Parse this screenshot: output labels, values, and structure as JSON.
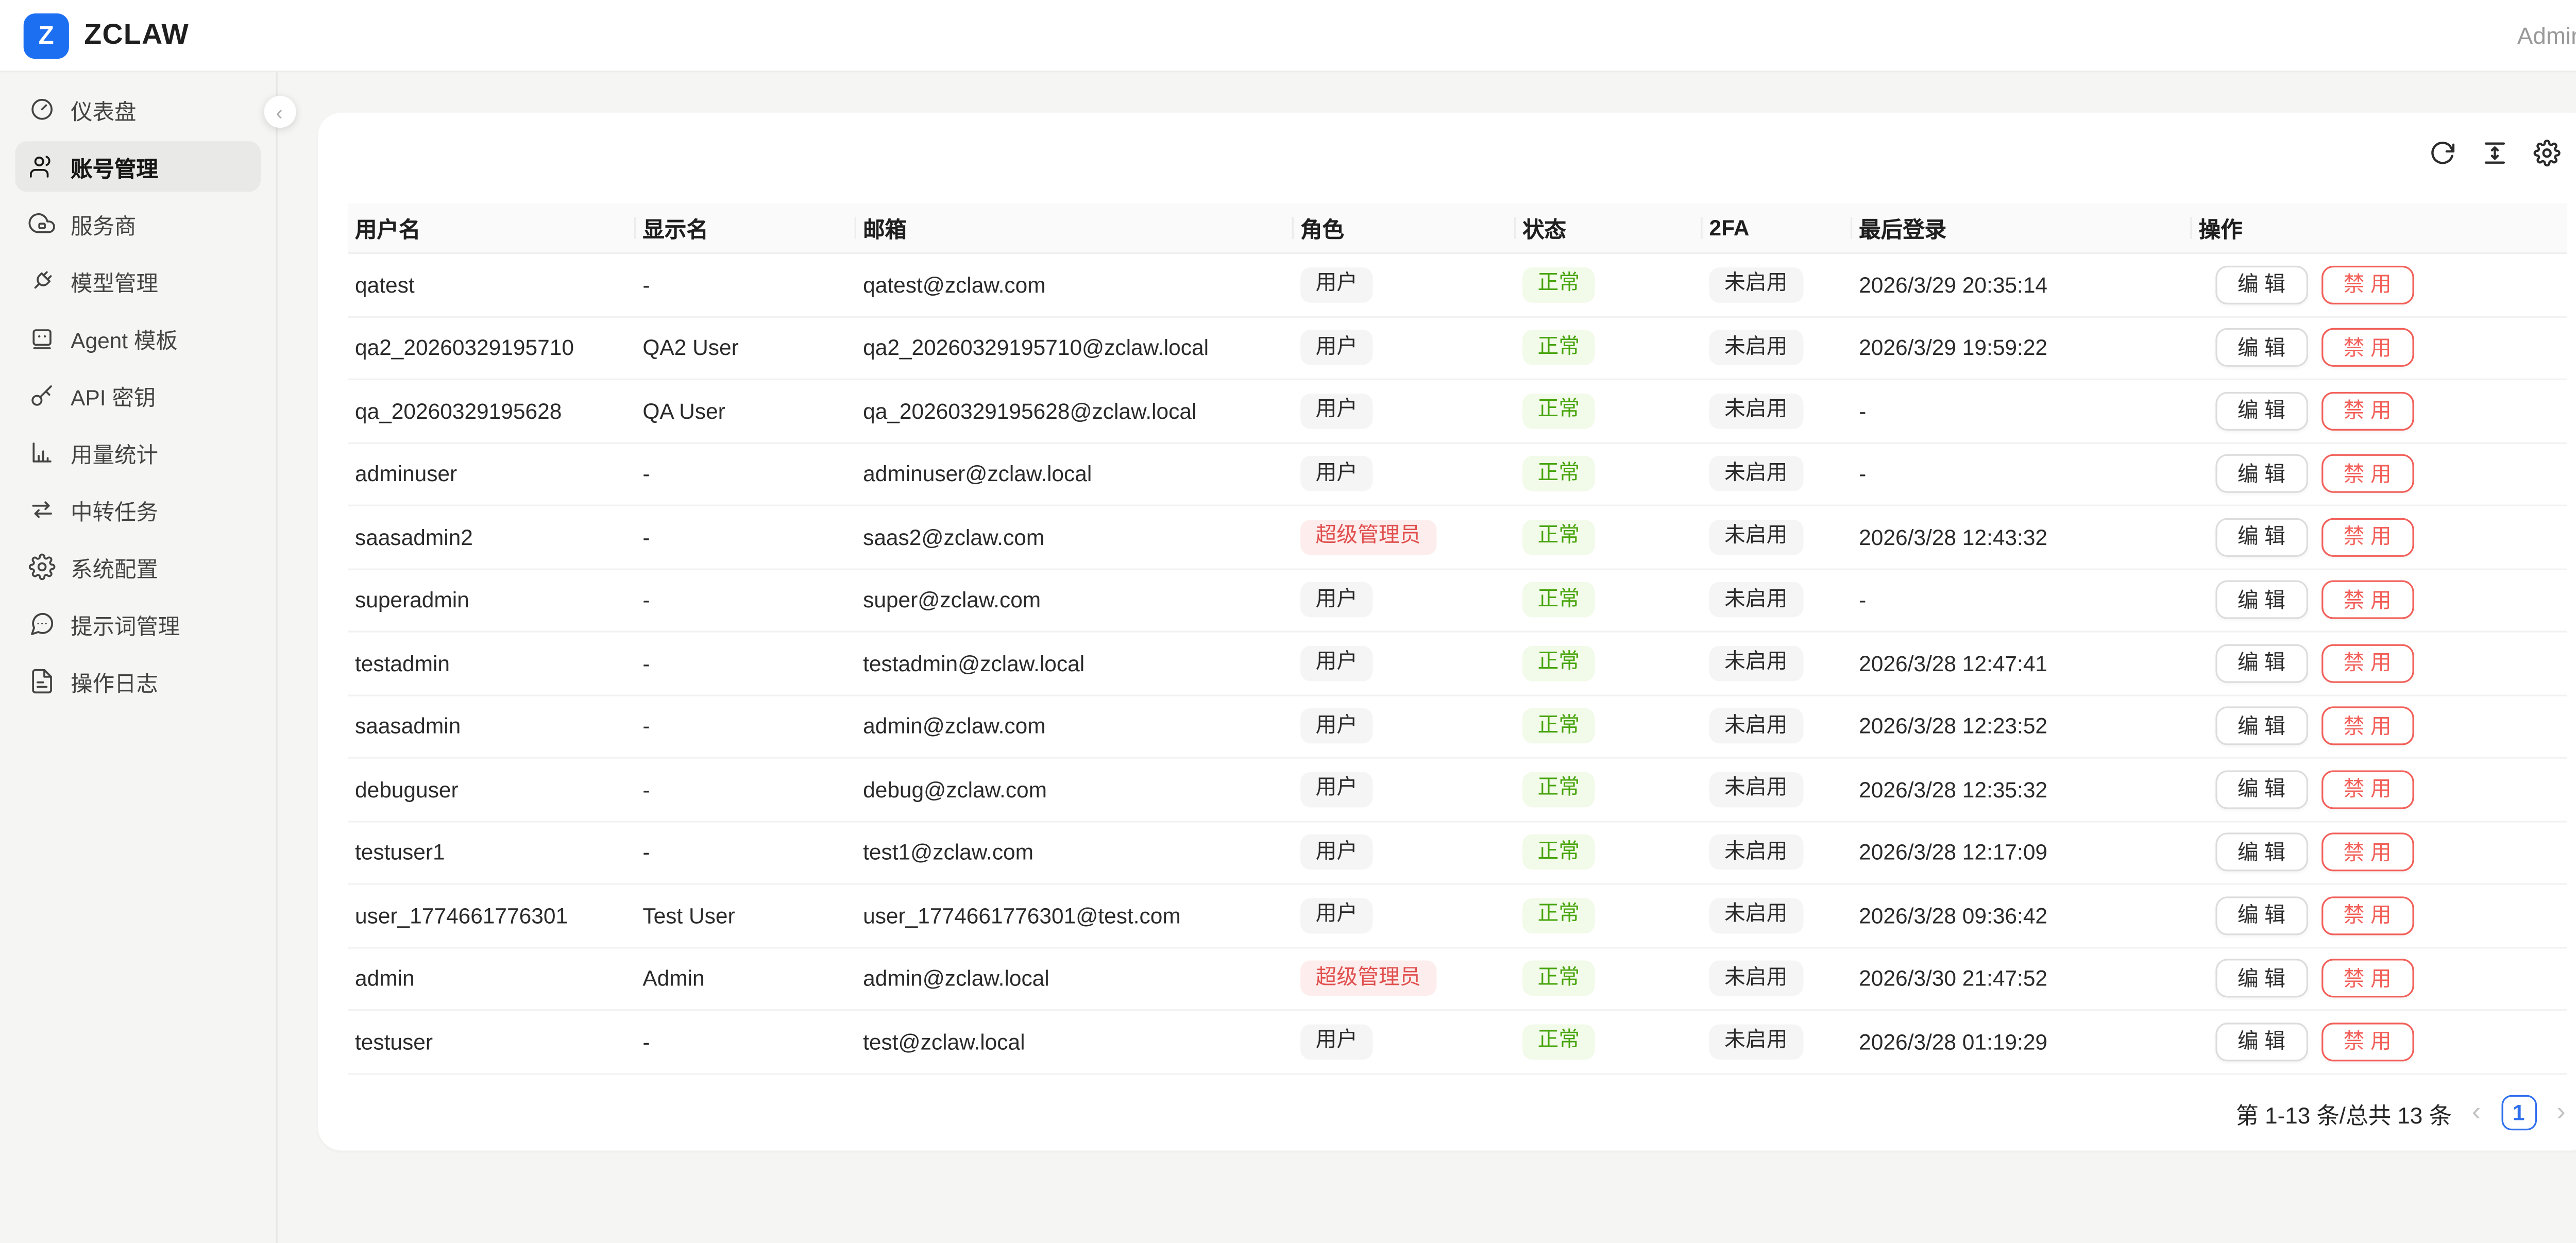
{
  "topbar": {
    "logo_letter": "Z",
    "brand": "ZCLAW",
    "user": "Admin"
  },
  "sidebar": {
    "collapse_icon": "‹",
    "active_index": 1,
    "items": [
      {
        "id": "dashboard",
        "icon": "gauge",
        "label": "仪表盘"
      },
      {
        "id": "accounts",
        "icon": "users",
        "label": "账号管理"
      },
      {
        "id": "providers",
        "icon": "cloud",
        "label": "服务商"
      },
      {
        "id": "models",
        "icon": "plug",
        "label": "模型管理"
      },
      {
        "id": "agent-tpl",
        "icon": "robot",
        "label": "Agent 模板"
      },
      {
        "id": "api-keys",
        "icon": "key",
        "label": "API 密钥"
      },
      {
        "id": "usage",
        "icon": "chart",
        "label": "用量统计"
      },
      {
        "id": "relay-tasks",
        "icon": "swap",
        "label": "中转任务"
      },
      {
        "id": "sys-config",
        "icon": "gear",
        "label": "系统配置"
      },
      {
        "id": "prompts",
        "icon": "message",
        "label": "提示词管理"
      },
      {
        "id": "op-logs",
        "icon": "file",
        "label": "操作日志"
      }
    ]
  },
  "toolbar": {
    "icons": [
      "refresh",
      "row-height",
      "settings"
    ]
  },
  "table": {
    "columns": [
      "用户名",
      "显示名",
      "邮箱",
      "角色",
      "状态",
      "2FA",
      "最后登录",
      "操作"
    ],
    "actions": {
      "edit": "编辑",
      "disable": "禁用"
    },
    "rows": [
      {
        "username": "qatest",
        "display_name": "-",
        "email": "qatest@zclaw.com",
        "role": "用户",
        "role_variant": "user",
        "status": "正常",
        "twofa": "未启用",
        "last_login": "2026/3/29 20:35:14"
      },
      {
        "username": "qa2_20260329195710",
        "display_name": "QA2 User",
        "email": "qa2_20260329195710@zclaw.local",
        "role": "用户",
        "role_variant": "user",
        "status": "正常",
        "twofa": "未启用",
        "last_login": "2026/3/29 19:59:22"
      },
      {
        "username": "qa_20260329195628",
        "display_name": "QA User",
        "email": "qa_20260329195628@zclaw.local",
        "role": "用户",
        "role_variant": "user",
        "status": "正常",
        "twofa": "未启用",
        "last_login": "-"
      },
      {
        "username": "adminuser",
        "display_name": "-",
        "email": "adminuser@zclaw.local",
        "role": "用户",
        "role_variant": "user",
        "status": "正常",
        "twofa": "未启用",
        "last_login": "-"
      },
      {
        "username": "saasadmin2",
        "display_name": "-",
        "email": "saas2@zclaw.com",
        "role": "超级管理员",
        "role_variant": "super",
        "status": "正常",
        "twofa": "未启用",
        "last_login": "2026/3/28 12:43:32"
      },
      {
        "username": "superadmin",
        "display_name": "-",
        "email": "super@zclaw.com",
        "role": "用户",
        "role_variant": "user",
        "status": "正常",
        "twofa": "未启用",
        "last_login": "-"
      },
      {
        "username": "testadmin",
        "display_name": "-",
        "email": "testadmin@zclaw.local",
        "role": "用户",
        "role_variant": "user",
        "status": "正常",
        "twofa": "未启用",
        "last_login": "2026/3/28 12:47:41"
      },
      {
        "username": "saasadmin",
        "display_name": "-",
        "email": "admin@zclaw.com",
        "role": "用户",
        "role_variant": "user",
        "status": "正常",
        "twofa": "未启用",
        "last_login": "2026/3/28 12:23:52"
      },
      {
        "username": "debuguser",
        "display_name": "-",
        "email": "debug@zclaw.com",
        "role": "用户",
        "role_variant": "user",
        "status": "正常",
        "twofa": "未启用",
        "last_login": "2026/3/28 12:35:32"
      },
      {
        "username": "testuser1",
        "display_name": "-",
        "email": "test1@zclaw.com",
        "role": "用户",
        "role_variant": "user",
        "status": "正常",
        "twofa": "未启用",
        "last_login": "2026/3/28 12:17:09"
      },
      {
        "username": "user_1774661776301",
        "display_name": "Test User",
        "email": "user_1774661776301@test.com",
        "role": "用户",
        "role_variant": "user",
        "status": "正常",
        "twofa": "未启用",
        "last_login": "2026/3/28 09:36:42"
      },
      {
        "username": "admin",
        "display_name": "Admin",
        "email": "admin@zclaw.local",
        "role": "超级管理员",
        "role_variant": "super",
        "status": "正常",
        "twofa": "未启用",
        "last_login": "2026/3/30 21:47:52"
      },
      {
        "username": "testuser",
        "display_name": "-",
        "email": "test@zclaw.local",
        "role": "用户",
        "role_variant": "user",
        "status": "正常",
        "twofa": "未启用",
        "last_login": "2026/3/28 01:19:29"
      }
    ]
  },
  "pagination": {
    "summary": "第 1-13 条/总共 13 条",
    "prev": "‹",
    "current_page": "1",
    "next": "›"
  },
  "colors": {
    "accent_blue": "#1d6ff2",
    "pagination_blue": "#2f6fed",
    "status_green": "#47a40b",
    "status_green_bg": "#f2fae9",
    "role_red": "#e0504f",
    "role_red_bg": "#fdeeed",
    "neutral_badge_bg": "#f5f5f5",
    "danger_button": "#f2605a",
    "page_bg": "#f5f5f3",
    "card_bg": "#ffffff"
  }
}
